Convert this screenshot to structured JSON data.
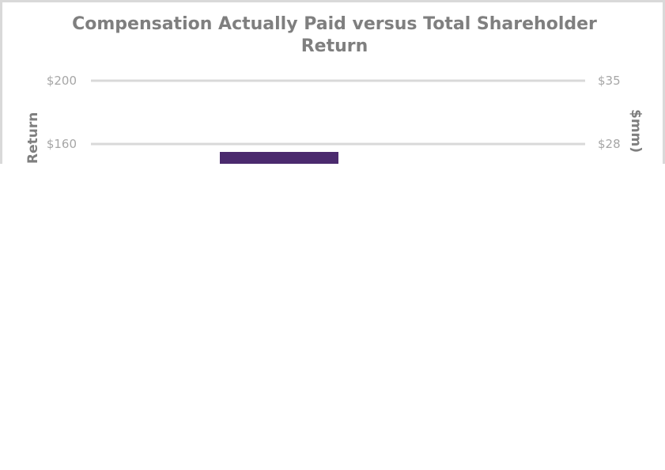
{
  "chart_data": {
    "type": "bar",
    "title": "Compensation Actually Paid versus Total Shareholder Return",
    "ylabel": "Return",
    "y2label": "$mm)",
    "ylim": [
      0,
      200
    ],
    "y2lim": [
      0,
      35
    ],
    "y_ticks": [
      "$200",
      "$160"
    ],
    "y_tick_values": [
      200,
      160
    ],
    "y2_ticks": [
      "$35",
      "$28"
    ],
    "y2_tick_values": [
      35,
      28
    ],
    "grid": true,
    "series": [
      {
        "color": "#4b2a6e",
        "values": [
          155
        ]
      }
    ]
  }
}
